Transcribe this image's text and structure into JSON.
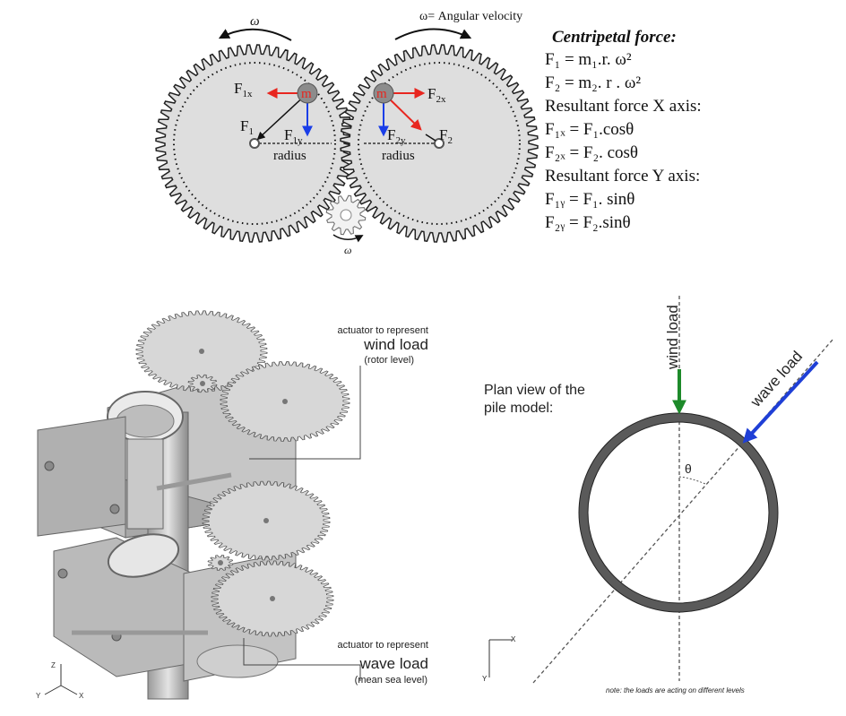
{
  "top_diagram": {
    "omega_left": "ω",
    "omega_right_label": "ω= Angular velocity",
    "omega_small": "ω",
    "mass_left": "m",
    "mass_right": "m",
    "f1x": "F",
    "f1x_sub": "1x",
    "f1y": "F",
    "f1y_sub": "1y",
    "f1": "F",
    "f1_sub": "1",
    "f2x": "F",
    "f2x_sub": "2x",
    "f2y": "F",
    "f2y_sub": "2y",
    "f2": "F",
    "f2_sub": "2",
    "radius_left": "radius",
    "radius_right": "radius"
  },
  "equations": {
    "title": "Centripetal force:",
    "line1": "F₁ = m₁.r. ω²",
    "line2": "F₂ = m₂. r . ω²",
    "line3": "Resultant force X axis:",
    "line4": "F₁ₓ = F₁.cosθ",
    "line5": "F₂ₓ = F₂. cosθ",
    "line6": "Resultant force Y axis:",
    "line7": "F₁ᵧ = F₁. sinθ",
    "line8": "F₂ᵧ =  F₂.sinθ"
  },
  "model_render": {
    "wind_caption1": "actuator to represent",
    "wind_caption2": "wind load",
    "wind_caption3": "(rotor level)",
    "wave_caption1": "actuator to represent",
    "wave_caption2": "wave load",
    "wave_caption3": "(mean sea level)",
    "axis_z": "Z",
    "axis_y": "Y",
    "axis_x": "X"
  },
  "plan_view": {
    "title_line1": "Plan view of the",
    "title_line2": "pile model:",
    "wind_load": "wind load",
    "wave_load": "wave load",
    "theta": "θ",
    "axis_x": "X",
    "axis_y": "Y",
    "note": "note: the loads are acting on different levels"
  },
  "colors": {
    "force_red": "#e8261f",
    "force_blue": "#1a3ee8",
    "wind_green": "#1d8a2a",
    "wave_blue": "#1f3fd6",
    "gear_fill": "#dedede",
    "mass_fill": "#8c8c8c"
  }
}
